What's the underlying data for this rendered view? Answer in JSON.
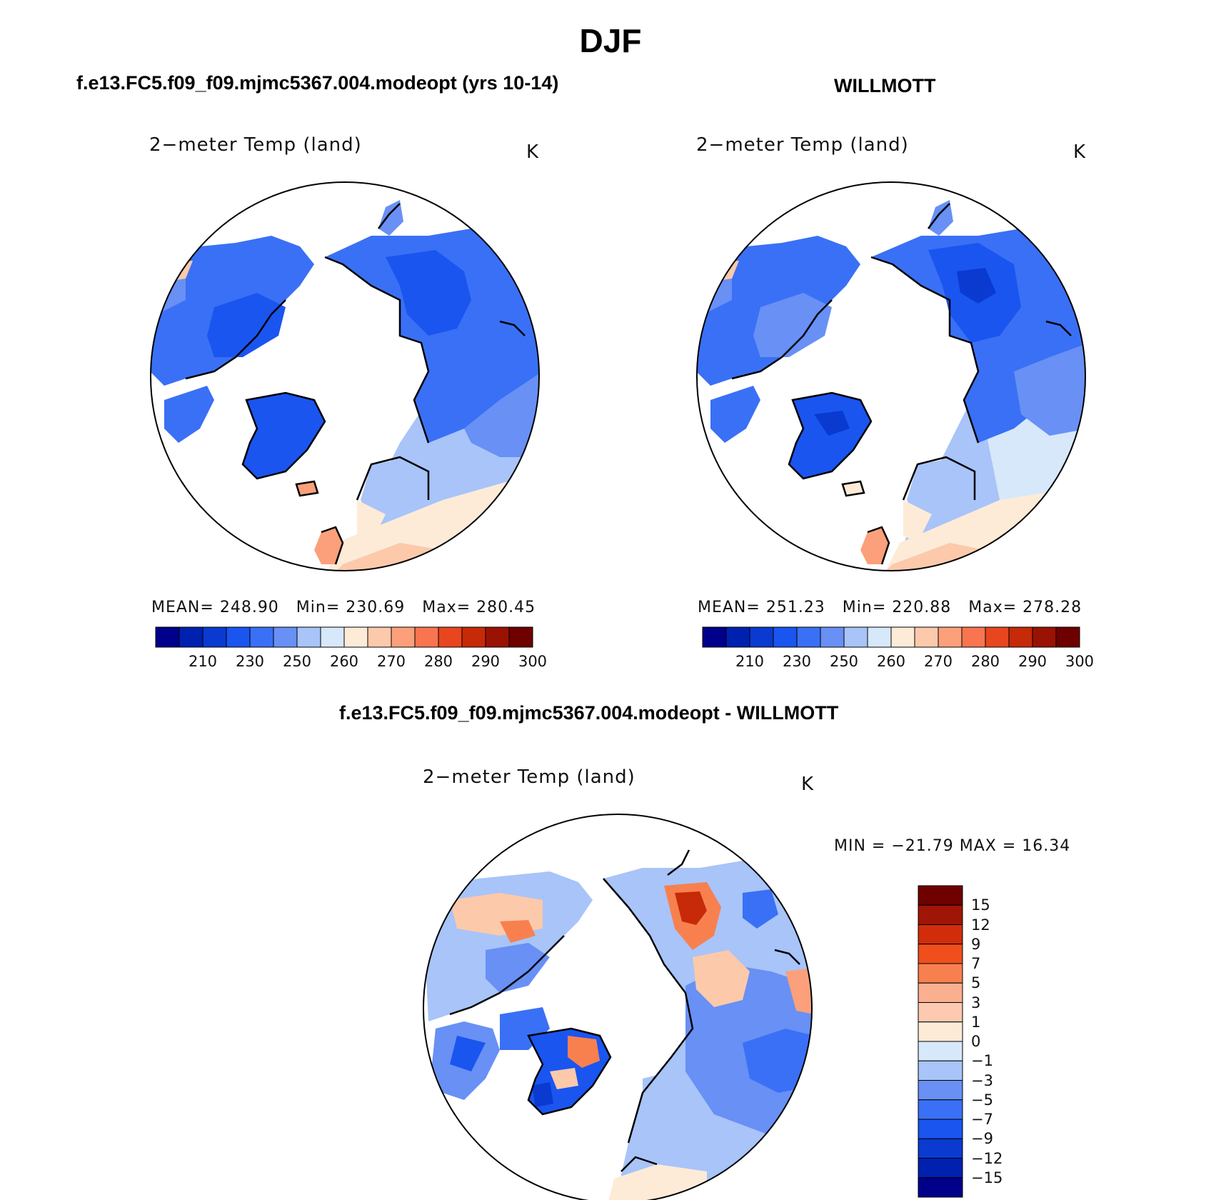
{
  "figure": {
    "season": "DJF",
    "left_panel_title": "f.e13.FC5.f09_f09.mjmc5367.004.modeopt (yrs 10-14)",
    "right_panel_title": "WILLMOTT",
    "diff_panel_title": "f.e13.FC5.f09_f09.mjmc5367.004.modeopt - WILLMOTT"
  },
  "panels": [
    {
      "plot_title": "2−meter Temp (land)",
      "units": "K",
      "stats": {
        "mean_label": "MEAN=",
        "mean": "248.90",
        "min_label": "Min=",
        "min": "230.69",
        "max_label": "Max=",
        "max": "280.45"
      }
    },
    {
      "plot_title": "2−meter Temp (land)",
      "units": "K",
      "stats": {
        "mean_label": "MEAN=",
        "mean": "251.23",
        "min_label": "Min=",
        "min": "220.88",
        "max_label": "Max=",
        "max": "278.28"
      }
    },
    {
      "plot_title": "2−meter Temp (land)",
      "units": "K",
      "stats_text": "MIN = −21.79 MAX =   16.34"
    }
  ],
  "colorbars": {
    "absolute": {
      "colors": [
        "#00008b",
        "#0020b0",
        "#0a3ad0",
        "#1a55f0",
        "#3a70f5",
        "#6890f5",
        "#a8c4f8",
        "#d7e8fb",
        "#fdebd8",
        "#fcc9ab",
        "#fba07a",
        "#f87550",
        "#e8461e",
        "#c62a08",
        "#9a1204",
        "#6e0000"
      ],
      "labels": [
        "210",
        "230",
        "250",
        "260",
        "270",
        "280",
        "290",
        "300"
      ]
    },
    "difference": {
      "colors": [
        "#6e0000",
        "#a01505",
        "#d12d0a",
        "#f04f1c",
        "#f8804f",
        "#fab090",
        "#fdc9b0",
        "#fdebd8",
        "#d7e8fb",
        "#a8c4f8",
        "#6890f5",
        "#3a70f5",
        "#1a55f0",
        "#0a3ad0",
        "#0020b0",
        "#00008b"
      ],
      "labels": [
        "15",
        "12",
        "9",
        "7",
        "5",
        "3",
        "1",
        "0",
        "−1",
        "−3",
        "−5",
        "−7",
        "−9",
        "−12",
        "−15"
      ]
    }
  }
}
